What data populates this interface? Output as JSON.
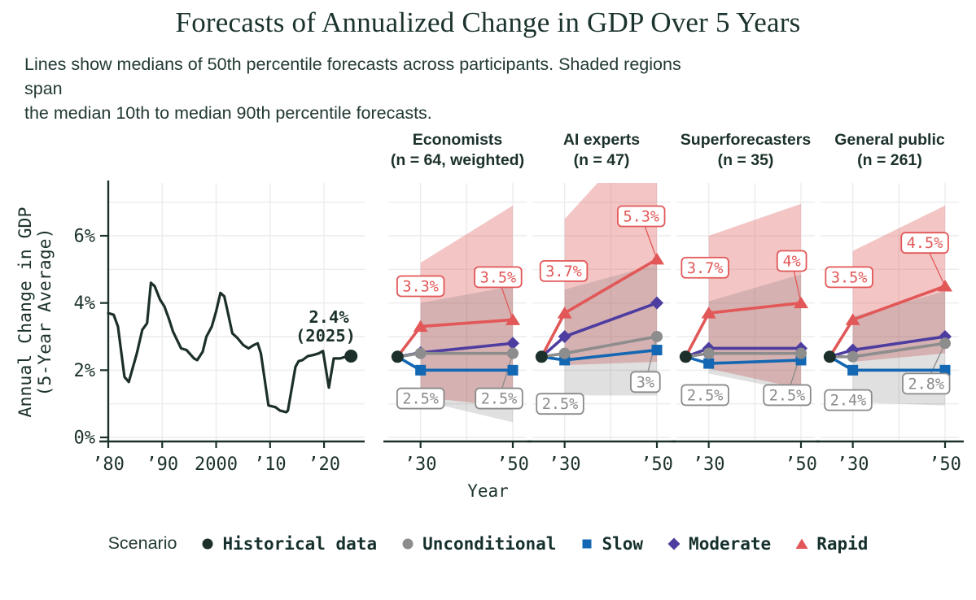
{
  "title": "Forecasts of Annualized Change in GDP Over 5 Years",
  "subtitle": "Lines show medians of 50th percentile forecasts across participants. Shaded regions span\nthe median 10th to median 90th percentile forecasts.",
  "xaxis_title": "Year",
  "colors": {
    "dark": "#1c312c",
    "grid": "#ececec",
    "historical": "#1c2f2b",
    "rapid": "#e25757",
    "moderate": "#4e3da0",
    "slow": "#1467b2",
    "unconditional": "#8d8d8d",
    "rapid_band": "rgba(226,110,110,0.40)",
    "unconditional_band": "rgba(90,90,90,0.19)",
    "label_gray": "#8a8a8a",
    "label_box_fill": "#ffffff"
  },
  "legend": {
    "title": "Scenario",
    "items": [
      {
        "id": "historical",
        "label": "Historical data",
        "marker": "circle",
        "color": "#1c2f2b"
      },
      {
        "id": "unconditional",
        "label": "Unconditional",
        "marker": "circle",
        "color": "#8d8d8d"
      },
      {
        "id": "slow",
        "label": "Slow",
        "marker": "square",
        "color": "#1467b2"
      },
      {
        "id": "moderate",
        "label": "Moderate",
        "marker": "diamond",
        "color": "#4e3da0"
      },
      {
        "id": "rapid",
        "label": "Rapid",
        "marker": "triangle",
        "color": "#e25757"
      }
    ]
  },
  "chart_data": {
    "type": "line",
    "title": "Forecasts of Annualized Change in GDP Over 5 Years",
    "ylabel_lines": [
      "Annual Change in GDP",
      "(5-Year Average)"
    ],
    "xlabel": "Year",
    "ylim": [
      0,
      7.6
    ],
    "y_ticks": [
      {
        "value": 0,
        "label": "0%"
      },
      {
        "value": 2,
        "label": "2%"
      },
      {
        "value": 4,
        "label": "4%"
      },
      {
        "value": 6,
        "label": "6%"
      }
    ],
    "y_grid_values": [
      0,
      1,
      2,
      3,
      4,
      5,
      6,
      7
    ],
    "historical": {
      "x_ticks": [
        {
          "year": 1980,
          "label": "’80"
        },
        {
          "year": 1990,
          "label": "’90"
        },
        {
          "year": 2000,
          "label": "2000"
        },
        {
          "year": 2010,
          "label": "’10"
        },
        {
          "year": 2020,
          "label": "’20"
        }
      ],
      "grid_years": [
        1990,
        2000,
        2010,
        2020
      ],
      "points": [
        [
          1980,
          3.7
        ],
        [
          1981,
          3.65
        ],
        [
          1981.8,
          3.3
        ],
        [
          1983,
          1.8
        ],
        [
          1983.8,
          1.65
        ],
        [
          1985.3,
          2.5
        ],
        [
          1986.3,
          3.2
        ],
        [
          1987.2,
          3.4
        ],
        [
          1987.9,
          4.6
        ],
        [
          1988.6,
          4.5
        ],
        [
          1989.6,
          4.1
        ],
        [
          1990.4,
          3.9
        ],
        [
          1991.2,
          3.55
        ],
        [
          1992,
          3.15
        ],
        [
          1993.5,
          2.65
        ],
        [
          1994.5,
          2.6
        ],
        [
          1995.9,
          2.35
        ],
        [
          1996.5,
          2.3
        ],
        [
          1997.5,
          2.55
        ],
        [
          1998.2,
          3.0
        ],
        [
          1999.2,
          3.3
        ],
        [
          2000,
          3.75
        ],
        [
          2000.8,
          4.3
        ],
        [
          2001.5,
          4.2
        ],
        [
          2002.2,
          3.7
        ],
        [
          2003,
          3.1
        ],
        [
          2004,
          2.95
        ],
        [
          2005,
          2.75
        ],
        [
          2006,
          2.65
        ],
        [
          2007,
          2.75
        ],
        [
          2007.7,
          2.8
        ],
        [
          2008.3,
          2.5
        ],
        [
          2009.7,
          0.95
        ],
        [
          2011,
          0.9
        ],
        [
          2011.8,
          0.8
        ],
        [
          2013,
          0.75
        ],
        [
          2013.3,
          0.8
        ],
        [
          2014.7,
          2.1
        ],
        [
          2015.3,
          2.27
        ],
        [
          2016,
          2.3
        ],
        [
          2017,
          2.42
        ],
        [
          2018,
          2.45
        ],
        [
          2019,
          2.5
        ],
        [
          2019.8,
          2.57
        ],
        [
          2020.9,
          1.48
        ],
        [
          2021.8,
          2.35
        ],
        [
          2023,
          2.35
        ],
        [
          2024,
          2.4
        ],
        [
          2025,
          2.42
        ]
      ],
      "end_point": {
        "year": 2025,
        "value": 2.4
      },
      "annotation": {
        "lines": [
          "2.4%",
          "(2025)"
        ]
      }
    },
    "forecast_x_ticks": [
      {
        "year": 2030,
        "label": "’30"
      },
      {
        "year": 2050,
        "label": "’50"
      }
    ],
    "forecast_grid_years": [
      2030,
      2040,
      2050
    ],
    "scenario_draw_order": [
      "slow",
      "moderate",
      "unconditional",
      "rapid"
    ],
    "panels": [
      {
        "name": "Economists",
        "n_label": "(n = 64, weighted)",
        "start": {
          "year": 2025,
          "value": 2.4
        },
        "series": {
          "unconditional": [
            [
              2030,
              2.5
            ],
            [
              2050,
              2.5
            ]
          ],
          "slow": [
            [
              2030,
              2.0
            ],
            [
              2050,
              2.0
            ]
          ],
          "moderate": [
            [
              2030,
              2.52
            ],
            [
              2050,
              2.8
            ]
          ],
          "rapid": [
            [
              2030,
              3.3
            ],
            [
              2050,
              3.5
            ]
          ]
        },
        "bands": {
          "rapid": {
            "x": [
              2030,
              2050
            ],
            "lo": [
              1.2,
              0.9
            ],
            "hi": [
              5.2,
              6.9
            ]
          },
          "unconditional": {
            "x": [
              2030,
              2050
            ],
            "lo": [
              1.1,
              0.45
            ],
            "hi": [
              4.0,
              4.5
            ]
          }
        },
        "labels": [
          {
            "text": "3.3%",
            "scenario": "rapid",
            "anchor_year": 2030,
            "anchor_value": 4.5
          },
          {
            "text": "3.5%",
            "scenario": "rapid",
            "anchor_year": 2046.8,
            "anchor_value": 4.77,
            "leader_to": [
              2050,
              3.5
            ]
          },
          {
            "text": "2.5%",
            "scenario": "unconditional",
            "anchor_year": 2030,
            "anchor_value": 1.16
          },
          {
            "text": "2.5%",
            "scenario": "unconditional",
            "anchor_year": 2047,
            "anchor_value": 1.16,
            "leader_to": [
              2050,
              2.5
            ]
          }
        ]
      },
      {
        "name": "AI experts",
        "n_label": "(n = 47)",
        "start": {
          "year": 2025,
          "value": 2.4
        },
        "series": {
          "unconditional": [
            [
              2030,
              2.5
            ],
            [
              2050,
              3.0
            ]
          ],
          "slow": [
            [
              2030,
              2.3
            ],
            [
              2050,
              2.6
            ]
          ],
          "moderate": [
            [
              2030,
              3.0
            ],
            [
              2050,
              4.0
            ]
          ],
          "rapid": [
            [
              2030,
              3.7
            ],
            [
              2050,
              5.3
            ]
          ]
        },
        "bands": {
          "rapid": {
            "x": [
              2030,
              2050
            ],
            "lo": [
              2.15,
              2.25
            ],
            "hi": [
              6.5,
              9.5
            ]
          },
          "unconditional": {
            "x": [
              2030,
              2050
            ],
            "lo": [
              1.25,
              1.25
            ],
            "hi": [
              4.4,
              5.15
            ]
          }
        },
        "labels": [
          {
            "text": "3.7%",
            "scenario": "rapid",
            "anchor_year": 2029.8,
            "anchor_value": 4.95
          },
          {
            "text": "5.3%",
            "scenario": "rapid",
            "anchor_year": 2046.6,
            "anchor_value": 6.58,
            "leader_to": [
              2050,
              5.3
            ]
          },
          {
            "text": "2.5%",
            "scenario": "unconditional",
            "anchor_year": 2029,
            "anchor_value": 1.0
          },
          {
            "text": "3%",
            "scenario": "unconditional",
            "anchor_year": 2047.5,
            "anchor_value": 1.65,
            "leader_to": [
              2050,
              3.0
            ]
          }
        ]
      },
      {
        "name": "Superforecasters",
        "n_label": "(n = 35)",
        "start": {
          "year": 2025,
          "value": 2.4
        },
        "series": {
          "unconditional": [
            [
              2030,
              2.5
            ],
            [
              2050,
              2.5
            ]
          ],
          "slow": [
            [
              2030,
              2.2
            ],
            [
              2050,
              2.3
            ]
          ],
          "moderate": [
            [
              2030,
              2.65
            ],
            [
              2050,
              2.65
            ]
          ],
          "rapid": [
            [
              2030,
              3.7
            ],
            [
              2050,
              4.0
            ]
          ]
        },
        "bands": {
          "rapid": {
            "x": [
              2030,
              2050
            ],
            "lo": [
              2.05,
              1.45
            ],
            "hi": [
              6.0,
              6.95
            ]
          },
          "unconditional": {
            "x": [
              2030,
              2050
            ],
            "lo": [
              1.9,
              1.35
            ],
            "hi": [
              4.05,
              4.85
            ]
          }
        },
        "labels": [
          {
            "text": "3.7%",
            "scenario": "rapid",
            "anchor_year": 2029.2,
            "anchor_value": 5.05
          },
          {
            "text": "4%",
            "scenario": "rapid",
            "anchor_year": 2048,
            "anchor_value": 5.25,
            "leader_to": [
              2050,
              4.0
            ]
          },
          {
            "text": "2.5%",
            "scenario": "unconditional",
            "anchor_year": 2029.2,
            "anchor_value": 1.26
          },
          {
            "text": "2.5%",
            "scenario": "unconditional",
            "anchor_year": 2047,
            "anchor_value": 1.26,
            "leader_to": [
              2050,
              2.5
            ]
          }
        ]
      },
      {
        "name": "General public",
        "n_label": "(n = 261)",
        "start": {
          "year": 2025,
          "value": 2.4
        },
        "series": {
          "unconditional": [
            [
              2030,
              2.4
            ],
            [
              2050,
              2.8
            ]
          ],
          "slow": [
            [
              2030,
              2.0
            ],
            [
              2050,
              2.0
            ]
          ],
          "moderate": [
            [
              2030,
              2.6
            ],
            [
              2050,
              3.0
            ]
          ],
          "rapid": [
            [
              2030,
              3.5
            ],
            [
              2050,
              4.5
            ]
          ]
        },
        "bands": {
          "rapid": {
            "x": [
              2030,
              2050
            ],
            "lo": [
              2.25,
              2.5
            ],
            "hi": [
              5.55,
              6.9
            ]
          },
          "unconditional": {
            "x": [
              2030,
              2050
            ],
            "lo": [
              1.05,
              0.95
            ],
            "hi": [
              3.6,
              4.35
            ]
          }
        },
        "labels": [
          {
            "text": "3.5%",
            "scenario": "rapid",
            "anchor_year": 2029.2,
            "anchor_value": 4.77
          },
          {
            "text": "4.5%",
            "scenario": "rapid",
            "anchor_year": 2045.6,
            "anchor_value": 5.79,
            "leader_to": [
              2050,
              4.5
            ]
          },
          {
            "text": "2.4%",
            "scenario": "unconditional",
            "anchor_year": 2029,
            "anchor_value": 1.11
          },
          {
            "text": "2.8%",
            "scenario": "unconditional",
            "anchor_year": 2045.9,
            "anchor_value": 1.6,
            "leader_to": [
              2050,
              2.8
            ]
          }
        ]
      }
    ]
  }
}
